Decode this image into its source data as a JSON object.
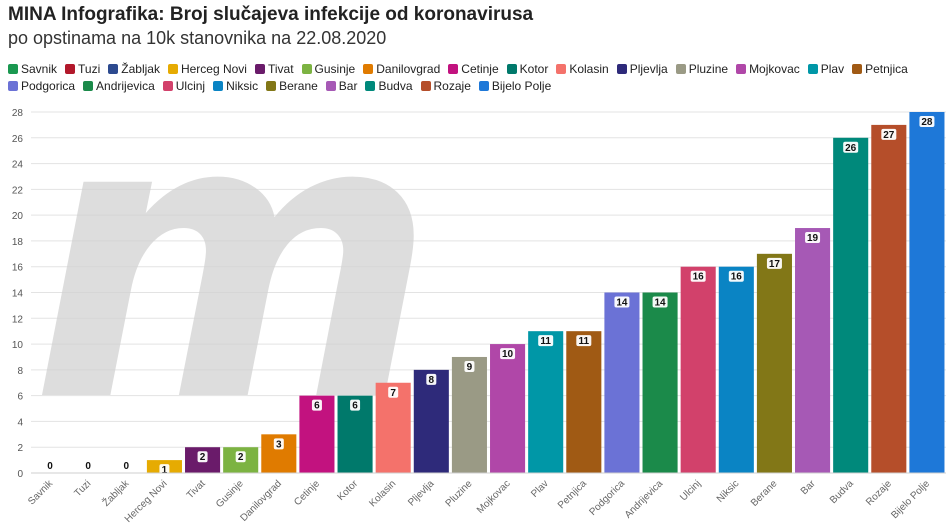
{
  "chart_data": {
    "type": "bar",
    "title": "MINA Infografika: Broj slučajeva infekcije od koronavirusa",
    "subtitle": "po opstinama na 10k stanovnika na 22.08.2020",
    "categories": [
      "Savnik",
      "Tuzi",
      "Žabljak",
      "Herceg Novi",
      "Tivat",
      "Gusinje",
      "Danilovgrad",
      "Cetinje",
      "Kotor",
      "Kolasin",
      "Pljevlja",
      "Pluzine",
      "Mojkovac",
      "Plav",
      "Petnjica",
      "Podgorica",
      "Andrijevica",
      "Ulcinj",
      "Niksic",
      "Berane",
      "Bar",
      "Budva",
      "Rozaje",
      "Bijelo Polje"
    ],
    "values": [
      0,
      0,
      0,
      1,
      2,
      2,
      3,
      6,
      6,
      7,
      8,
      9,
      10,
      11,
      11,
      14,
      14,
      16,
      16,
      17,
      19,
      26,
      27,
      28
    ],
    "data_labels": [
      "0",
      "0",
      "0",
      "1",
      "2",
      "2",
      "3",
      "6",
      "6",
      "7",
      "8",
      "9",
      "10",
      "11",
      "11",
      "14",
      "14",
      "16",
      "16",
      "17",
      "19",
      "26",
      "27",
      "28"
    ],
    "colors": [
      "#1a9850",
      "#b2182b",
      "#2c4a8f",
      "#e6ab02",
      "#6a1b6a",
      "#7cb342",
      "#e07b00",
      "#c2127f",
      "#00796b",
      "#f4726b",
      "#2e2a7a",
      "#9a9a85",
      "#b047a8",
      "#0097a7",
      "#a05a14",
      "#6b72d6",
      "#1b8a4a",
      "#d2416b",
      "#0a84c4",
      "#827717",
      "#a659b5",
      "#00897b",
      "#b54e2a",
      "#1e78d8"
    ],
    "xlabel": "",
    "ylabel": "",
    "ylim": [
      0,
      28
    ],
    "yticks": [
      0,
      2,
      4,
      6,
      8,
      10,
      12,
      14,
      16,
      18,
      20,
      22,
      24,
      26,
      28
    ],
    "grid": true,
    "legend_position": "top",
    "legend": [
      "Savnik",
      "Tuzi",
      "Žabljak",
      "Herceg Novi",
      "Tivat",
      "Gusinje",
      "Danilovgrad",
      "Cetinje",
      "Kotor",
      "Kolasin",
      "Pljevlja",
      "Pluzine",
      "Mojkovac",
      "Plav",
      "Petnjica",
      "Podgorica",
      "Andrijevica",
      "Ulcinj",
      "Niksic",
      "Berane",
      "Bar",
      "Budva",
      "Rozaje",
      "Bijelo Polje"
    ],
    "watermark": "m"
  }
}
